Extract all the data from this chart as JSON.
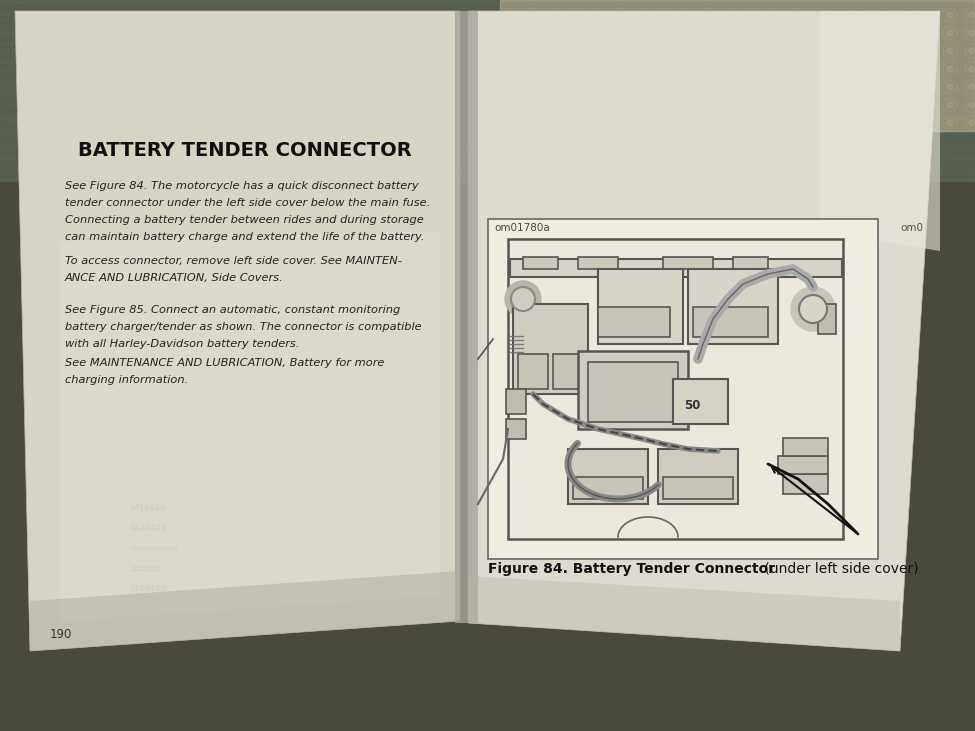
{
  "bg_fabric_color": "#5a6050",
  "bg_lace_color": "#c8c0a0",
  "left_page_color": "#ddd8c8",
  "right_page_color": "#e0ddd0",
  "right_page_lower_color": "#d8d5c8",
  "spine_color": "#c0bcb0",
  "title": "BATTERY TENDER CONNECTOR",
  "para1_line1": "See Figure 84. The motorcycle has a quick disconnect battery",
  "para1_line2": "tender connector under the left side cover below the main fuse.",
  "para1_line3": "Connecting a battery tender between rides and during storage",
  "para1_line4": "can maintain battery charge and extend the life of the battery.",
  "para2_line1": "To access connector, remove left side cover. See MAINTEN-",
  "para2_line2": "ANCE AND LUBRICATION, Side Covers.",
  "para3_line1": "See Figure 85. Connect an automatic, constant monitoring",
  "para3_line2": "battery charger/tender as shown. The connector is compatible",
  "para3_line3": "with all Harley-Davidson battery tenders.",
  "para4_line1": "See MAINTENANCE AND LUBRICATION, Battery for more",
  "para4_line2": "charging information.",
  "figure_label": "om01780a",
  "right_label": "om0",
  "page_num": "190",
  "fig_caption_bold": "Figure 84. Battery Tender Connector",
  "fig_caption_normal": " (under left side cover)",
  "diagram_bg": "#f0ede0",
  "diagram_line_color": "#555555",
  "text_color": "#222222",
  "title_color": "#111111"
}
